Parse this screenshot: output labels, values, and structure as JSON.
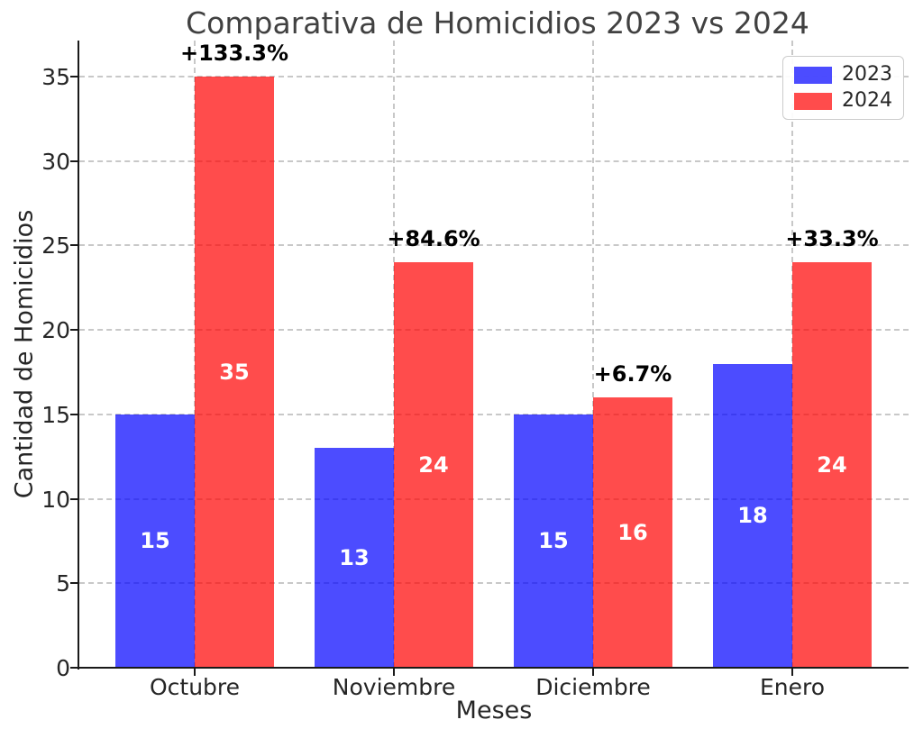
{
  "chart_data": {
    "type": "bar",
    "title": "Comparativa de Homicidios 2023 vs 2024",
    "xlabel": "Meses",
    "ylabel": "Cantidad de Homicidios",
    "categories": [
      "Octubre",
      "Noviembre",
      "Diciembre",
      "Enero"
    ],
    "series": [
      {
        "name": "2023",
        "color_hex": "#4d4dff",
        "color_rgba": "rgba(0,0,255,0.7)",
        "values": [
          15,
          13,
          15,
          18
        ]
      },
      {
        "name": "2024",
        "color_hex": "#ff4d4d",
        "color_rgba": "rgba(255,0,0,0.7)",
        "values": [
          35,
          24,
          16,
          24
        ]
      }
    ],
    "bar_value_labels": [
      [
        "15",
        "13",
        "15",
        "18"
      ],
      [
        "35",
        "24",
        "16",
        "24"
      ]
    ],
    "annotations": [
      "+133.3%",
      "+84.6%",
      "+6.7%",
      "+33.3%"
    ],
    "yticks": [
      0,
      5,
      10,
      15,
      20,
      25,
      30,
      35
    ],
    "ylim": [
      0,
      37.13
    ],
    "grid": true,
    "grid_style": "dashed",
    "legend": {
      "position": "upper right",
      "entries": [
        "2023",
        "2024"
      ]
    },
    "colors": {
      "background": "#ffffff",
      "grid": "#c8c8c8",
      "axis": "#1a1a1a",
      "bar_label_text": "#ffffff",
      "annotation_text": "#000000"
    }
  }
}
